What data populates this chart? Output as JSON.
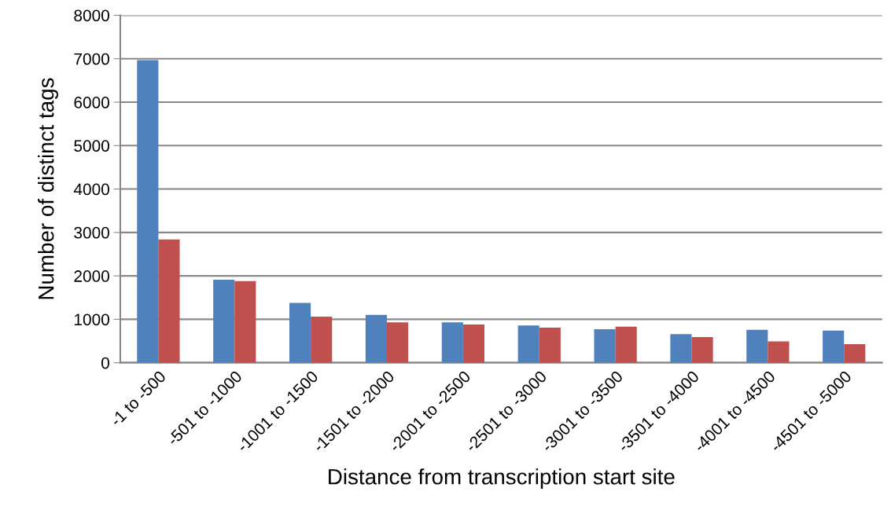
{
  "chart_data": {
    "type": "bar",
    "xlabel": "Distance from transcription start site",
    "ylabel": "Number of distinct tags",
    "categories": [
      "-1 to -500",
      "-501 to -1000",
      "-1001 to -1500",
      "-1501 to -2000",
      "-2001 to -2500",
      "-2501 to -3000",
      "-3001 to -3500",
      "-3501 to -4000",
      "-4001 to -4500",
      "-4501 to -5000"
    ],
    "series": [
      {
        "color": "#4f81bd",
        "values": [
          6970,
          1910,
          1380,
          1100,
          930,
          860,
          770,
          660,
          760,
          740
        ]
      },
      {
        "color": "#c0504d",
        "values": [
          2840,
          1880,
          1060,
          930,
          880,
          810,
          830,
          590,
          490,
          430
        ]
      }
    ],
    "ylim": [
      0,
      8000
    ],
    "yticks": [
      0,
      1000,
      2000,
      3000,
      4000,
      5000,
      6000,
      7000,
      8000
    ],
    "grid": "y",
    "legend": false
  }
}
